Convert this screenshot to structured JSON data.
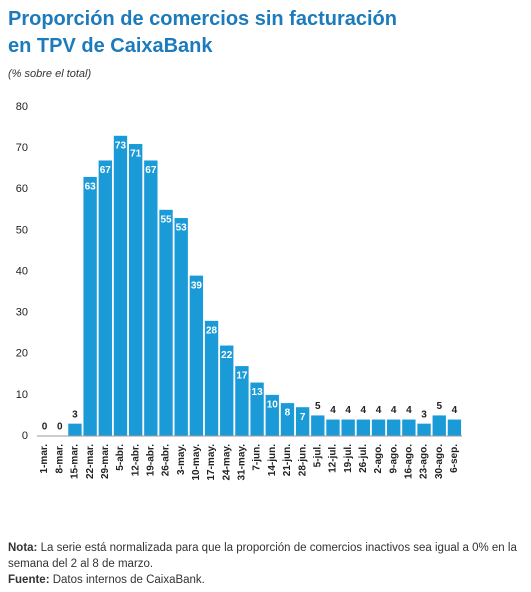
{
  "chart_data": {
    "type": "bar",
    "title": [
      "Proporción de comercios sin facturación",
      "en TPV de CaixaBank"
    ],
    "subtitle": "(% sobre el total)",
    "categories": [
      "1-mar.",
      "8-mar.",
      "15-mar.",
      "22-mar.",
      "29-mar.",
      "5-abr.",
      "12-abr.",
      "19-abr.",
      "26-abr.",
      "3-may.",
      "10-may.",
      "17-may.",
      "24-may.",
      "31-may.",
      "7-jun.",
      "14-jun.",
      "21-jun.",
      "28-jun.",
      "5-jul.",
      "12-jul.",
      "19-jul.",
      "26-jul.",
      "2-ago.",
      "9-ago.",
      "16-ago.",
      "23-ago.",
      "30-ago.",
      "6-sep."
    ],
    "values": [
      0,
      0,
      3,
      63,
      67,
      73,
      71,
      67,
      55,
      53,
      39,
      28,
      22,
      17,
      13,
      10,
      8,
      7,
      5,
      4,
      4,
      4,
      4,
      4,
      4,
      3,
      5,
      4
    ],
    "color": "#1a9bd7",
    "ylim": [
      0,
      80
    ],
    "yticks": [
      0,
      10,
      20,
      30,
      40,
      50,
      60,
      70,
      80
    ],
    "grid": false,
    "note": {
      "label": "Nota:",
      "text": "La serie está normalizada para que la proporción de comercios inactivos sea igual a 0% en la semana del 2 al 8 de marzo."
    },
    "source": {
      "label": "Fuente:",
      "text": "Datos internos de CaixaBank."
    }
  }
}
